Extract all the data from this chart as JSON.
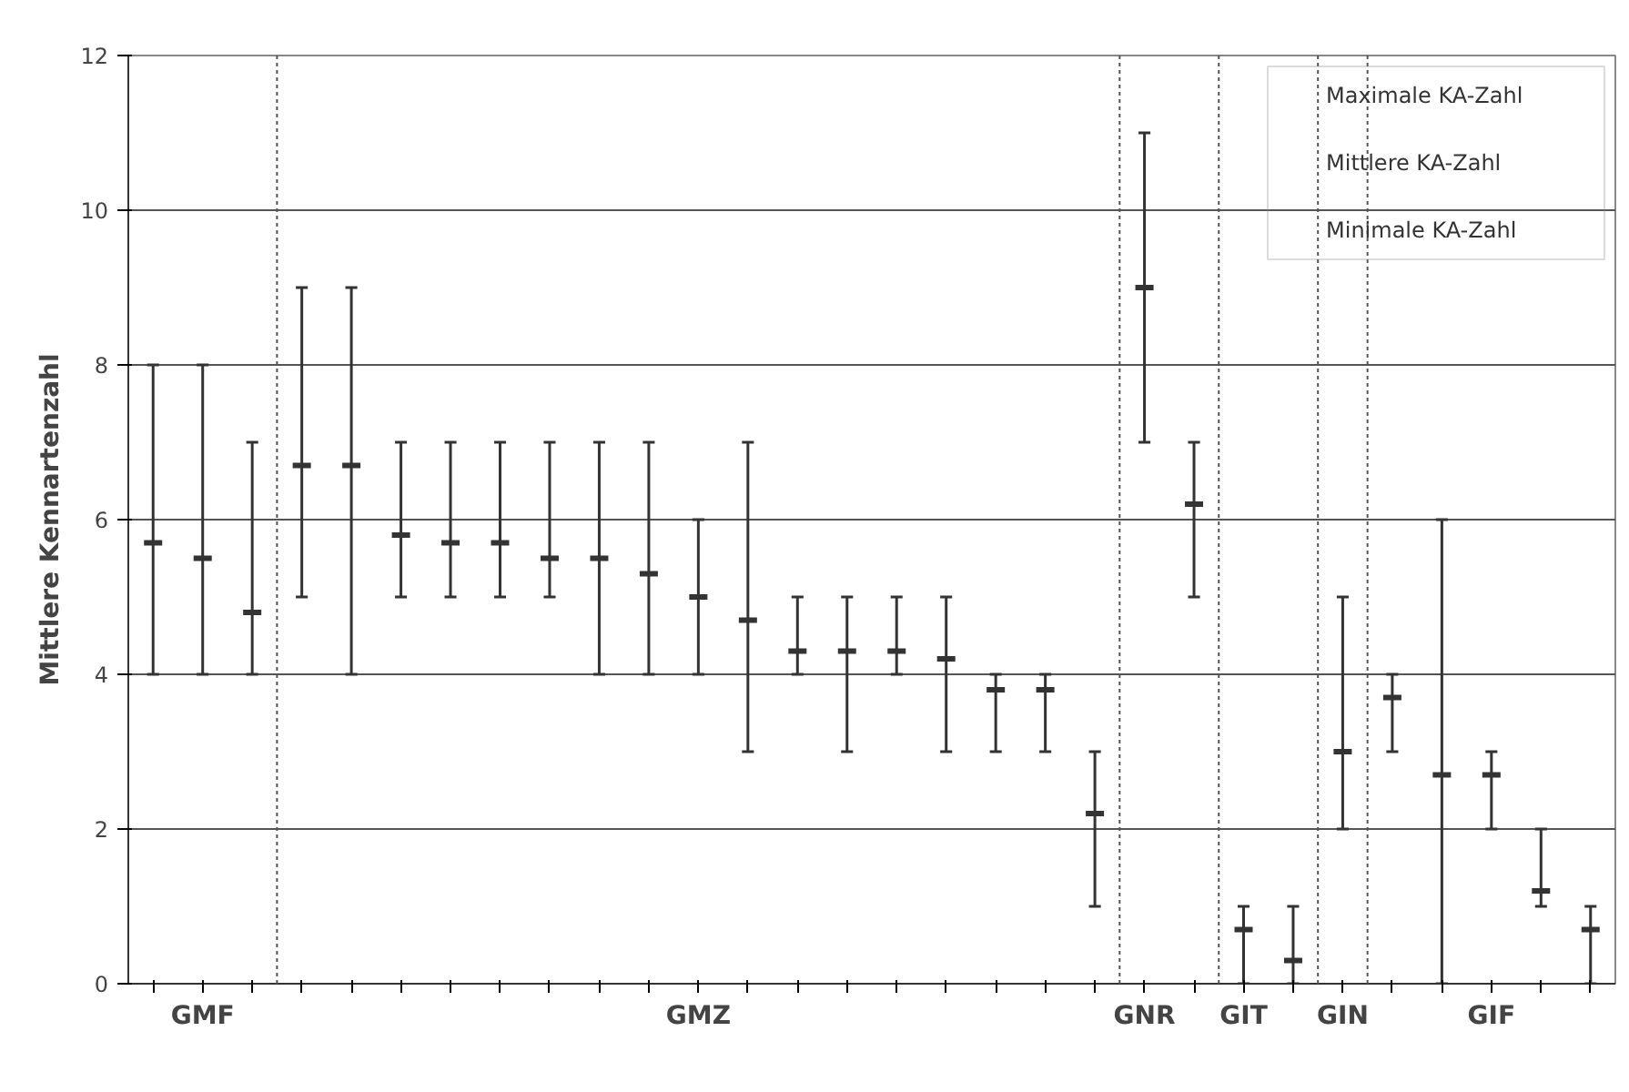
{
  "chart_data": {
    "type": "scatter",
    "ylabel": "Mittlere Kennartenzahl",
    "categories": [
      null,
      "GMF",
      null,
      null,
      null,
      null,
      null,
      null,
      null,
      null,
      null,
      "GMZ",
      null,
      null,
      null,
      null,
      null,
      null,
      null,
      null,
      "GNR",
      null,
      "GIT",
      null,
      "GIN",
      null,
      null,
      "GIF",
      null,
      null
    ],
    "values": [
      5.7,
      5.5,
      4.8,
      6.7,
      6.7,
      5.8,
      5.7,
      5.7,
      5.5,
      5.5,
      5.3,
      5.0,
      4.7,
      4.3,
      4.3,
      4.3,
      4.2,
      3.8,
      3.8,
      2.2,
      9.0,
      6.2,
      0.7,
      0.3,
      3.0,
      3.7,
      2.7,
      2.7,
      1.2,
      0.7
    ],
    "errors": [
      [
        4,
        8
      ],
      [
        4,
        8
      ],
      [
        4,
        7
      ],
      [
        5,
        9
      ],
      [
        4,
        9
      ],
      [
        5,
        7
      ],
      [
        5,
        7
      ],
      [
        5,
        7
      ],
      [
        5,
        7
      ],
      [
        4,
        7
      ],
      [
        4,
        7
      ],
      [
        4,
        6
      ],
      [
        3,
        7
      ],
      [
        4,
        5
      ],
      [
        3,
        5
      ],
      [
        4,
        5
      ],
      [
        3,
        5
      ],
      [
        3,
        4
      ],
      [
        3,
        4
      ],
      [
        1,
        3
      ],
      [
        7,
        11
      ],
      [
        5,
        7
      ],
      [
        0,
        1
      ],
      [
        0,
        1
      ],
      [
        2,
        5
      ],
      [
        3,
        4
      ],
      [
        0,
        6
      ],
      [
        2,
        3
      ],
      [
        1,
        2
      ],
      [
        0,
        1
      ]
    ],
    "color": "#333333",
    "ylim": [
      0,
      12
    ],
    "yticks": [
      0,
      2,
      4,
      6,
      8,
      10,
      12
    ],
    "grid": "y",
    "annotations": [
      "Maximale KA-Zahl",
      "Mittlere KA-Zahl",
      "Minimale KA-Zahl"
    ]
  }
}
